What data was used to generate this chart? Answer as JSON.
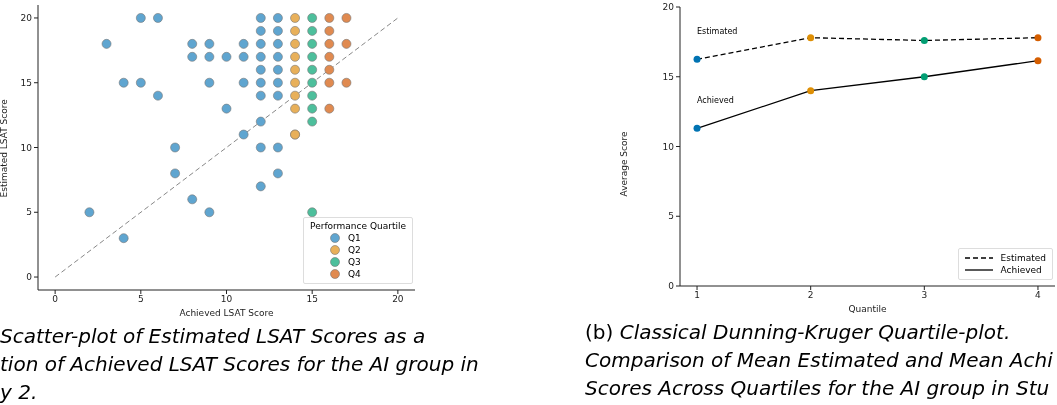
{
  "chart_data": [
    {
      "type": "scatter",
      "xlabel": "Achieved LSAT Score",
      "ylabel": "Estimated LSAT Score",
      "legend_title": "Performance Quartile",
      "legend": "bottom right",
      "xlim": [
        -1,
        21
      ],
      "ylim": [
        -1,
        21
      ],
      "xticks": [
        0,
        5,
        10,
        15,
        20
      ],
      "yticks": [
        0,
        5,
        10,
        15,
        20
      ],
      "marker": "circle",
      "series": [
        {
          "name": "Q1",
          "color": "#5fa5d0",
          "x": [
            5,
            6,
            3,
            8,
            9,
            8,
            9,
            10,
            4,
            5,
            9,
            6,
            10,
            7,
            7,
            8,
            9,
            2,
            4,
            12,
            13,
            12,
            13,
            11,
            12,
            13,
            11,
            12,
            13,
            12,
            13,
            11,
            12,
            13,
            12,
            13,
            12,
            11,
            12,
            13,
            13,
            12
          ],
          "values": [
            20,
            20,
            18,
            18,
            18,
            17,
            17,
            17,
            15,
            15,
            15,
            14,
            13,
            10,
            8,
            6,
            5,
            5,
            3,
            20,
            20,
            19,
            19,
            18,
            18,
            18,
            17,
            17,
            17,
            16,
            16,
            15,
            15,
            15,
            14,
            14,
            12,
            11,
            10,
            10,
            8,
            7
          ]
        },
        {
          "name": "Q2",
          "color": "#e8b05a",
          "x": [
            14,
            14,
            14,
            14,
            14,
            14,
            14,
            14,
            14,
            14
          ],
          "values": [
            20,
            19,
            18,
            17,
            16,
            15,
            14,
            13,
            11,
            11
          ]
        },
        {
          "name": "Q3",
          "color": "#4dbf9c",
          "x": [
            15,
            15,
            15,
            15,
            15,
            15,
            15,
            15,
            15,
            15
          ],
          "values": [
            20,
            19,
            18,
            17,
            16,
            15,
            14,
            13,
            12,
            5
          ]
        },
        {
          "name": "Q4",
          "color": "#e08a50",
          "x": [
            16,
            17,
            16,
            16,
            17,
            16,
            16,
            16,
            17,
            16
          ],
          "values": [
            20,
            20,
            19,
            18,
            18,
            17,
            16,
            15,
            15,
            13
          ]
        },
        {
          "type": "line",
          "color": "#888888",
          "line_style": "dashed",
          "marker": "none",
          "x": [
            0,
            20
          ],
          "values": [
            0,
            20
          ]
        }
      ],
      "annotations": [
        "Scatter-plot of Estimated LSAT Scores as a",
        "tion of Achieved LSAT Scores for the AI group in",
        "y 2."
      ]
    },
    {
      "type": "line",
      "xlabel": "Quantile",
      "ylabel": "Average Score",
      "legend": "bottom right",
      "marker": "circle",
      "x": [
        1,
        2,
        3,
        4
      ],
      "xlim": [
        0.85,
        4.15
      ],
      "xticks": [
        1,
        2,
        3,
        4
      ],
      "ylim": [
        0,
        20
      ],
      "yticks": [
        0,
        5,
        10,
        15,
        20
      ],
      "series": [
        {
          "name": "Estimated",
          "color": "#000000",
          "line_style": "dashed",
          "colors": [
            "#0173b2",
            "#de8f05",
            "#029e73",
            "#d55e00"
          ],
          "values": [
            16.25,
            17.8,
            17.6,
            17.8
          ]
        },
        {
          "name": "Achieved",
          "color": "#000000",
          "line_style": "solid",
          "colors": [
            "#0173b2",
            "#de8f05",
            "#029e73",
            "#d55e00"
          ],
          "values": [
            11.3,
            14.0,
            15.0,
            16.15
          ]
        }
      ],
      "annotations": [
        "Estimated",
        "Achieved",
        "(b) Classical Dunning-Kruger Quartile-plot.",
        "Comparison of Mean Estimated and Mean Achi",
        "Scores Across Quartiles for the AI group in Stu"
      ]
    }
  ]
}
